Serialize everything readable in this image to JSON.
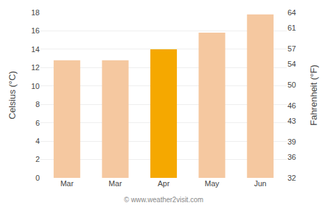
{
  "chart_data": {
    "type": "bar",
    "categories": [
      "Mar",
      "Mar",
      "Apr",
      "May",
      "Jun"
    ],
    "values": [
      12.8,
      12.8,
      14.0,
      15.8,
      17.8
    ],
    "colors": [
      "#f5c8a0",
      "#f5c8a0",
      "#f5a800",
      "#f5c8a0",
      "#f5c8a0"
    ],
    "ylabel": "Celsius (°C)",
    "y2label": "Fahrenheit (°F)",
    "ylim": [
      0,
      18
    ],
    "yticks": [
      0,
      2,
      4,
      6,
      8,
      10,
      12,
      14,
      16,
      18
    ],
    "y2lim": [
      32,
      64
    ],
    "y2ticks": [
      32,
      36,
      39,
      43,
      46,
      50,
      54,
      57,
      61,
      64
    ],
    "grid": true,
    "annotations": [
      {
        "text": "© www.weather2visit.com"
      }
    ]
  }
}
